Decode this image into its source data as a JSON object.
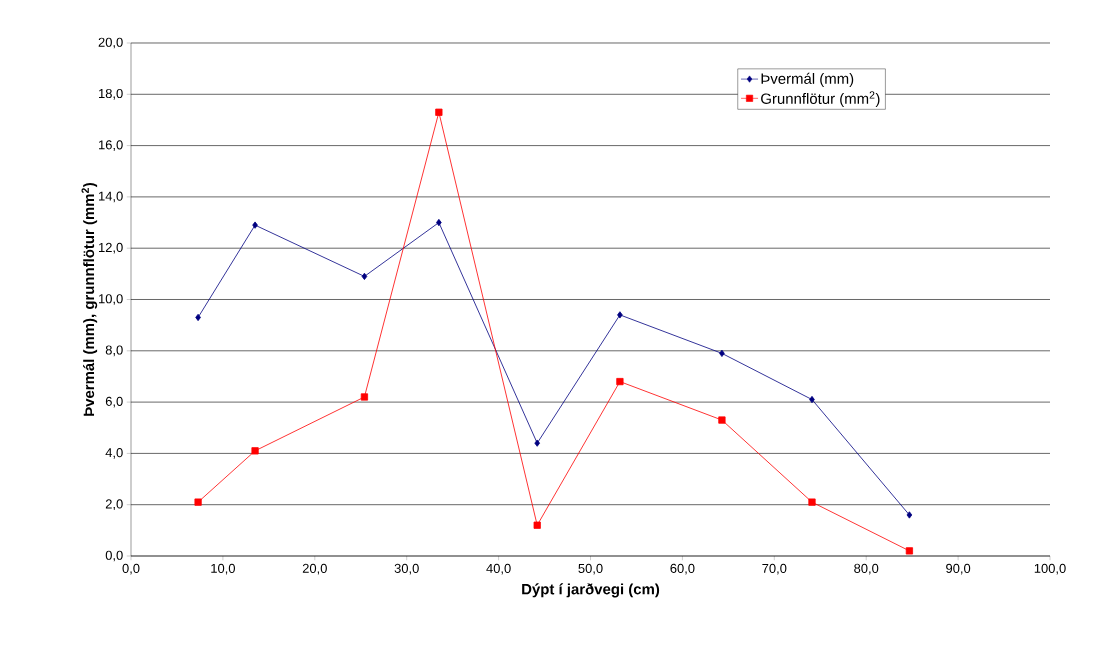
{
  "chart_data": {
    "type": "line",
    "xlabel": "Dýpt í jarðvegi (cm)",
    "ylabel": "Þvermál (mm), grunnflötur (mm$^{2}$)",
    "x": [
      7.3,
      13.5,
      25.4,
      33.5,
      44.2,
      53.2,
      64.3,
      74.1,
      84.7
    ],
    "series": [
      {
        "name": "Þvermál (mm)",
        "color": "#000080",
        "marker": "diamond",
        "values": [
          9.3,
          12.9,
          10.9,
          13.0,
          4.4,
          9.4,
          7.9,
          6.1,
          1.6
        ]
      },
      {
        "name": "Grunnflötur (mm$^{2}$)",
        "color": "#ff0000",
        "marker": "square",
        "values": [
          2.1,
          4.1,
          6.2,
          17.3,
          1.2,
          6.8,
          5.3,
          2.1,
          0.2
        ]
      }
    ],
    "xlim": [
      0,
      100
    ],
    "ylim": [
      0,
      20
    ],
    "xticks": [
      {
        "value": 0,
        "label": "0,0"
      },
      {
        "value": 10,
        "label": "10,0"
      },
      {
        "value": 20,
        "label": "20,0"
      },
      {
        "value": 30,
        "label": "30,0"
      },
      {
        "value": 40,
        "label": "40,0"
      },
      {
        "value": 50,
        "label": "50,0"
      },
      {
        "value": 60,
        "label": "60,0"
      },
      {
        "value": 70,
        "label": "70,0"
      },
      {
        "value": 80,
        "label": "80,0"
      },
      {
        "value": 90,
        "label": "90,0"
      },
      {
        "value": 100,
        "label": "100,0"
      }
    ],
    "yticks": [
      {
        "value": 0,
        "label": "0,0"
      },
      {
        "value": 2,
        "label": "2,0"
      },
      {
        "value": 4,
        "label": "4,0"
      },
      {
        "value": 6,
        "label": "6,0"
      },
      {
        "value": 8,
        "label": "8,0"
      },
      {
        "value": 10,
        "label": "10,0"
      },
      {
        "value": 12,
        "label": "12,0"
      },
      {
        "value": 14,
        "label": "14,0"
      },
      {
        "value": 16,
        "label": "16,0"
      },
      {
        "value": 18,
        "label": "18,0"
      },
      {
        "value": 20,
        "label": "20,0"
      }
    ],
    "grid": "y",
    "legend": "top right",
    "line_style": "solid"
  }
}
